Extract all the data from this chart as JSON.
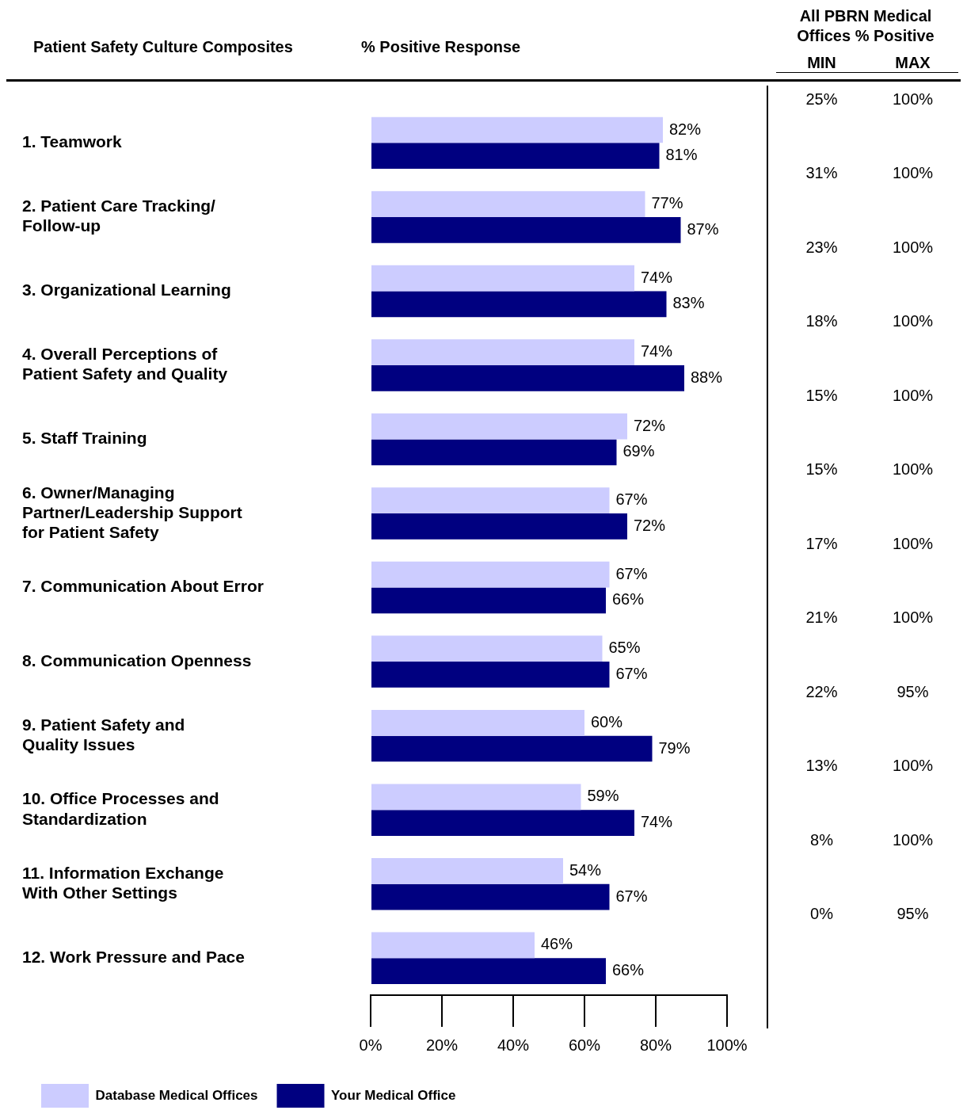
{
  "chart_data": [
    {
      "type": "bar",
      "orientation": "horizontal",
      "title": "% Positive Response",
      "ylabel": "Patient Safety Culture Composites",
      "categories": [
        "1. Teamwork",
        "2. Patient Care Tracking/ Follow-up",
        "3. Organizational Learning",
        "4. Overall Perceptions of Patient Safety and Quality",
        "5. Staff Training",
        "6. Owner/Managing Partner/Leadership Support for Patient Safety",
        "7. Communication About Error",
        "8. Communication Openness",
        "9. Patient Safety and Quality Issues",
        "10. Office Processes and Standardization",
        "11. Information Exchange With Other Settings",
        "12. Work Pressure and Pace"
      ],
      "series": [
        {
          "name": "Database Medical Offices",
          "color": "#ccccff",
          "values": [
            82,
            77,
            74,
            74,
            72,
            67,
            67,
            65,
            60,
            59,
            54,
            46
          ],
          "value_labels": [
            "82%",
            "77%",
            "74%",
            "74%",
            "72%",
            "67%",
            "67%",
            "65%",
            "60%",
            "59%",
            "54%",
            "46%"
          ]
        },
        {
          "name": "Your Medical Office",
          "color": "#000080",
          "values": [
            81,
            87,
            83,
            88,
            69,
            72,
            66,
            67,
            79,
            74,
            67,
            66
          ],
          "value_labels": [
            "81%",
            "87%",
            "83%",
            "88%",
            "69%",
            "72%",
            "66%",
            "67%",
            "79%",
            "74%",
            "67%",
            "66%"
          ]
        }
      ],
      "xlim": [
        0,
        100
      ],
      "xticks": [
        {
          "value": 0,
          "label": "0%"
        },
        {
          "value": 20,
          "label": "20%"
        },
        {
          "value": 40,
          "label": "40%"
        },
        {
          "value": 60,
          "label": "60%"
        },
        {
          "value": 80,
          "label": "80%"
        },
        {
          "value": 100,
          "label": "100%"
        }
      ],
      "grid": false,
      "legend": "bottom left"
    },
    {
      "type": "other",
      "title": "All PBRN Medical Offices % Positive",
      "categories": [
        "MIN",
        "MAX"
      ],
      "cell_labels": [
        [
          "25%",
          "100%"
        ],
        [
          "31%",
          "100%"
        ],
        [
          "23%",
          "100%"
        ],
        [
          "18%",
          "100%"
        ],
        [
          "15%",
          "100%"
        ],
        [
          "15%",
          "100%"
        ],
        [
          "17%",
          "100%"
        ],
        [
          "21%",
          "100%"
        ],
        [
          "22%",
          "95%"
        ],
        [
          "13%",
          "100%"
        ],
        [
          "8%",
          "100%"
        ],
        [
          "0%",
          "95%"
        ]
      ]
    }
  ]
}
